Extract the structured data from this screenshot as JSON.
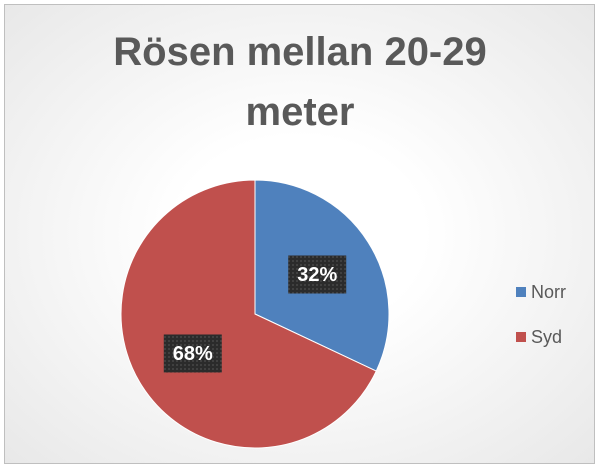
{
  "chart_data": {
    "type": "pie",
    "title": "Rösen mellan 20-29 meter",
    "categories": [
      "Norr",
      "Syd"
    ],
    "values": [
      32,
      68
    ],
    "value_labels": [
      "32%",
      "68%"
    ],
    "colors": [
      "#4f81bd",
      "#c0504d"
    ],
    "legend": "right"
  }
}
